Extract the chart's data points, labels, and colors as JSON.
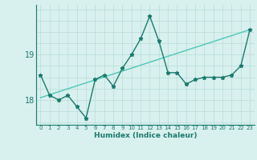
{
  "xlabel": "Humidex (Indice chaleur)",
  "bg_color": "#d8f0ee",
  "line_color": "#1a7a6e",
  "grid_color": "#b8ddd8",
  "x_values": [
    0,
    1,
    2,
    3,
    4,
    5,
    6,
    7,
    8,
    9,
    10,
    11,
    12,
    13,
    14,
    15,
    16,
    17,
    18,
    19,
    20,
    21,
    22,
    23
  ],
  "y_data": [
    18.55,
    18.1,
    18.0,
    18.1,
    17.85,
    17.6,
    18.45,
    18.55,
    18.3,
    18.7,
    19.0,
    19.35,
    19.85,
    19.3,
    18.6,
    18.6,
    18.35,
    18.45,
    18.5,
    18.5,
    18.5,
    18.55,
    18.75,
    19.55
  ],
  "ylim": [
    17.45,
    20.1
  ],
  "yticks": [
    18,
    19
  ],
  "xticks": [
    0,
    1,
    2,
    3,
    4,
    5,
    6,
    7,
    8,
    9,
    10,
    11,
    12,
    13,
    14,
    15,
    16,
    17,
    18,
    19,
    20,
    21,
    22,
    23
  ],
  "trend_y_start": 18.05,
  "trend_y_end": 19.55,
  "trend_color": "#4cc8b8",
  "marker": "*",
  "markersize": 3.5,
  "linewidth": 1.0
}
